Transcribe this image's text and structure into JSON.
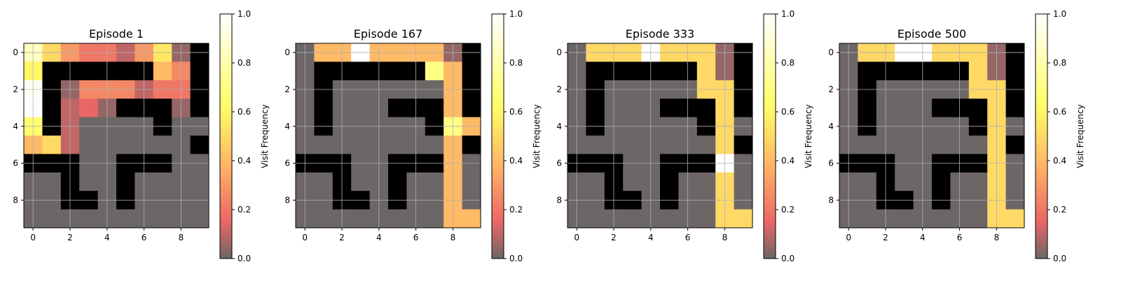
{
  "chart_data": [
    {
      "type": "heatmap",
      "title": "Episode 1",
      "colorbar_label": "Visit Frequency",
      "x_ticks": [
        0,
        2,
        4,
        6,
        8
      ],
      "y_ticks": [
        0,
        2,
        4,
        6,
        8
      ],
      "grid": true,
      "values": [
        [
          0.85,
          0.5,
          0.3,
          0.2,
          0.2,
          0.1,
          0.3,
          0.55,
          0.05,
          -1
        ],
        [
          0.6,
          -1,
          -1,
          -1,
          -1,
          -1,
          -1,
          0.4,
          0.25,
          -1
        ],
        [
          0.98,
          -1,
          0.05,
          0.25,
          0.25,
          0.25,
          0.1,
          0.2,
          0.2,
          -1
        ],
        [
          1.0,
          -1,
          0.1,
          0.15,
          0.05,
          -1,
          -1,
          -1,
          0.05,
          -1
        ],
        [
          0.65,
          -1,
          0.1,
          0.0,
          0.0,
          0.0,
          0.0,
          -1,
          0.0,
          0.0
        ],
        [
          0.4,
          0.5,
          0.1,
          0.0,
          0.0,
          0.0,
          0.0,
          0.0,
          0.0,
          -1
        ],
        [
          -1,
          -1,
          -1,
          0.0,
          0.0,
          -1,
          -1,
          -1,
          0.0,
          0.0
        ],
        [
          0.0,
          0.0,
          -1,
          0.0,
          0.0,
          -1,
          0.0,
          0.0,
          0.0,
          0.0
        ],
        [
          0.0,
          0.0,
          -1,
          -1,
          0.0,
          -1,
          0.0,
          0.0,
          0.0,
          0.0
        ],
        [
          0.0,
          0.0,
          0.0,
          0.0,
          0.0,
          0.0,
          0.0,
          0.0,
          0.0,
          0.0
        ]
      ]
    },
    {
      "type": "heatmap",
      "title": "Episode 167",
      "colorbar_label": "Visit Frequency",
      "x_ticks": [
        0,
        2,
        4,
        6,
        8
      ],
      "y_ticks": [
        0,
        2,
        4,
        6,
        8
      ],
      "grid": true,
      "values": [
        [
          0.0,
          0.4,
          0.4,
          1.0,
          0.4,
          0.4,
          0.4,
          0.4,
          0.05,
          -1
        ],
        [
          0.0,
          -1,
          -1,
          -1,
          -1,
          -1,
          -1,
          0.7,
          0.4,
          -1
        ],
        [
          0.0,
          -1,
          0.0,
          0.0,
          0.0,
          0.0,
          0.0,
          0.0,
          0.4,
          -1
        ],
        [
          0.0,
          -1,
          0.0,
          0.0,
          0.0,
          -1,
          -1,
          -1,
          0.4,
          -1
        ],
        [
          0.0,
          -1,
          0.0,
          0.0,
          0.0,
          0.0,
          0.0,
          -1,
          0.7,
          0.4
        ],
        [
          0.0,
          0.0,
          0.0,
          0.0,
          0.0,
          0.0,
          0.0,
          0.0,
          0.4,
          -1
        ],
        [
          -1,
          -1,
          -1,
          0.0,
          0.0,
          -1,
          -1,
          -1,
          0.4,
          0.0
        ],
        [
          0.0,
          0.0,
          -1,
          0.0,
          0.0,
          -1,
          0.0,
          0.0,
          0.4,
          0.0
        ],
        [
          0.0,
          0.0,
          -1,
          -1,
          0.0,
          -1,
          0.0,
          0.0,
          0.4,
          0.0
        ],
        [
          0.0,
          0.0,
          0.0,
          0.0,
          0.0,
          0.0,
          0.0,
          0.0,
          0.4,
          0.4
        ]
      ]
    },
    {
      "type": "heatmap",
      "title": "Episode 333",
      "colorbar_label": "Visit Frequency",
      "x_ticks": [
        0,
        2,
        4,
        6,
        8
      ],
      "y_ticks": [
        0,
        2,
        4,
        6,
        8
      ],
      "grid": true,
      "values": [
        [
          0.0,
          0.5,
          0.5,
          0.5,
          1.0,
          0.5,
          0.5,
          0.5,
          0.05,
          -1
        ],
        [
          0.0,
          -1,
          -1,
          -1,
          -1,
          -1,
          -1,
          0.5,
          0.05,
          -1
        ],
        [
          0.0,
          -1,
          0.0,
          0.0,
          0.0,
          0.0,
          0.0,
          0.5,
          0.5,
          -1
        ],
        [
          0.0,
          -1,
          0.0,
          0.0,
          0.0,
          -1,
          -1,
          -1,
          0.5,
          -1
        ],
        [
          0.0,
          -1,
          0.0,
          0.0,
          0.0,
          0.0,
          0.0,
          -1,
          0.5,
          0.0
        ],
        [
          0.0,
          0.0,
          0.0,
          0.0,
          0.0,
          0.0,
          0.0,
          0.0,
          0.5,
          -1
        ],
        [
          -1,
          -1,
          -1,
          0.0,
          0.0,
          -1,
          -1,
          -1,
          1.0,
          0.0
        ],
        [
          0.0,
          0.0,
          -1,
          0.0,
          0.0,
          -1,
          0.0,
          0.0,
          0.5,
          0.0
        ],
        [
          0.0,
          0.0,
          -1,
          -1,
          0.0,
          -1,
          0.0,
          0.0,
          0.5,
          0.0
        ],
        [
          0.0,
          0.0,
          0.0,
          0.0,
          0.0,
          0.0,
          0.0,
          0.0,
          0.5,
          0.5
        ]
      ]
    },
    {
      "type": "heatmap",
      "title": "Episode 500",
      "colorbar_label": "Visit Frequency",
      "x_ticks": [
        0,
        2,
        4,
        6,
        8
      ],
      "y_ticks": [
        0,
        2,
        4,
        6,
        8
      ],
      "grid": true,
      "values": [
        [
          0.0,
          0.5,
          0.5,
          1.0,
          1.0,
          0.5,
          0.5,
          0.5,
          0.05,
          -1
        ],
        [
          0.0,
          -1,
          -1,
          -1,
          -1,
          -1,
          -1,
          0.5,
          0.05,
          -1
        ],
        [
          0.0,
          -1,
          0.0,
          0.0,
          0.0,
          0.0,
          0.0,
          0.5,
          0.5,
          -1
        ],
        [
          0.0,
          -1,
          0.0,
          0.0,
          0.0,
          -1,
          -1,
          -1,
          0.5,
          -1
        ],
        [
          0.0,
          -1,
          0.0,
          0.0,
          0.0,
          0.0,
          0.0,
          -1,
          0.5,
          0.0
        ],
        [
          0.0,
          0.0,
          0.0,
          0.0,
          0.0,
          0.0,
          0.0,
          0.0,
          0.5,
          -1
        ],
        [
          -1,
          -1,
          -1,
          0.0,
          0.0,
          -1,
          -1,
          -1,
          0.5,
          0.0
        ],
        [
          0.0,
          0.0,
          -1,
          0.0,
          0.0,
          -1,
          0.0,
          0.0,
          0.5,
          0.0
        ],
        [
          0.0,
          0.0,
          -1,
          -1,
          0.0,
          -1,
          0.0,
          0.0,
          0.5,
          0.0
        ],
        [
          0.0,
          0.0,
          0.0,
          0.0,
          0.0,
          0.0,
          0.0,
          0.0,
          0.5,
          0.5
        ]
      ]
    }
  ],
  "colorbar": {
    "ticks": [
      "0.0",
      "0.2",
      "0.4",
      "0.6",
      "0.8",
      "1.0"
    ],
    "range": [
      0,
      1
    ],
    "colormap": "hot_r",
    "wall_color": "#000000",
    "cell_alpha": 0.6
  }
}
